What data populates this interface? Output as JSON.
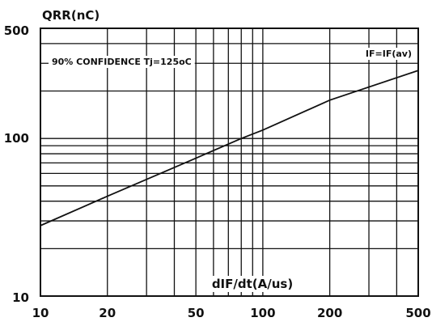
{
  "chart_data": {
    "type": "line",
    "title": "",
    "xlabel": "dIF/dt(A/us)",
    "ylabel": "QRR(nC)",
    "x_scale": "log",
    "y_scale": "log",
    "xlim": [
      10,
      500
    ],
    "ylim": [
      10,
      500
    ],
    "grid": true,
    "x_ticks": [
      "10",
      "20",
      "50",
      "100",
      "200",
      "500"
    ],
    "y_ticks": [
      "500",
      "100",
      "10"
    ],
    "x_minor_grid": [
      30,
      40,
      60,
      70,
      80,
      90,
      300,
      400
    ],
    "y_minor_grid": [
      20,
      30,
      40,
      50,
      60,
      70,
      80,
      90,
      200,
      300,
      400
    ],
    "annotations": [
      "90% CONFIDENCE Tj=125oC",
      "IF=IF(av)"
    ],
    "series": [
      {
        "name": "IF=IF(av)",
        "x": [
          10,
          20,
          50,
          80,
          100,
          200,
          500
        ],
        "y": [
          28,
          43,
          75,
          100,
          113,
          175,
          270
        ]
      }
    ],
    "colors": {
      "line": "#111111",
      "grid": "#111111",
      "background": "#ffffff"
    }
  }
}
